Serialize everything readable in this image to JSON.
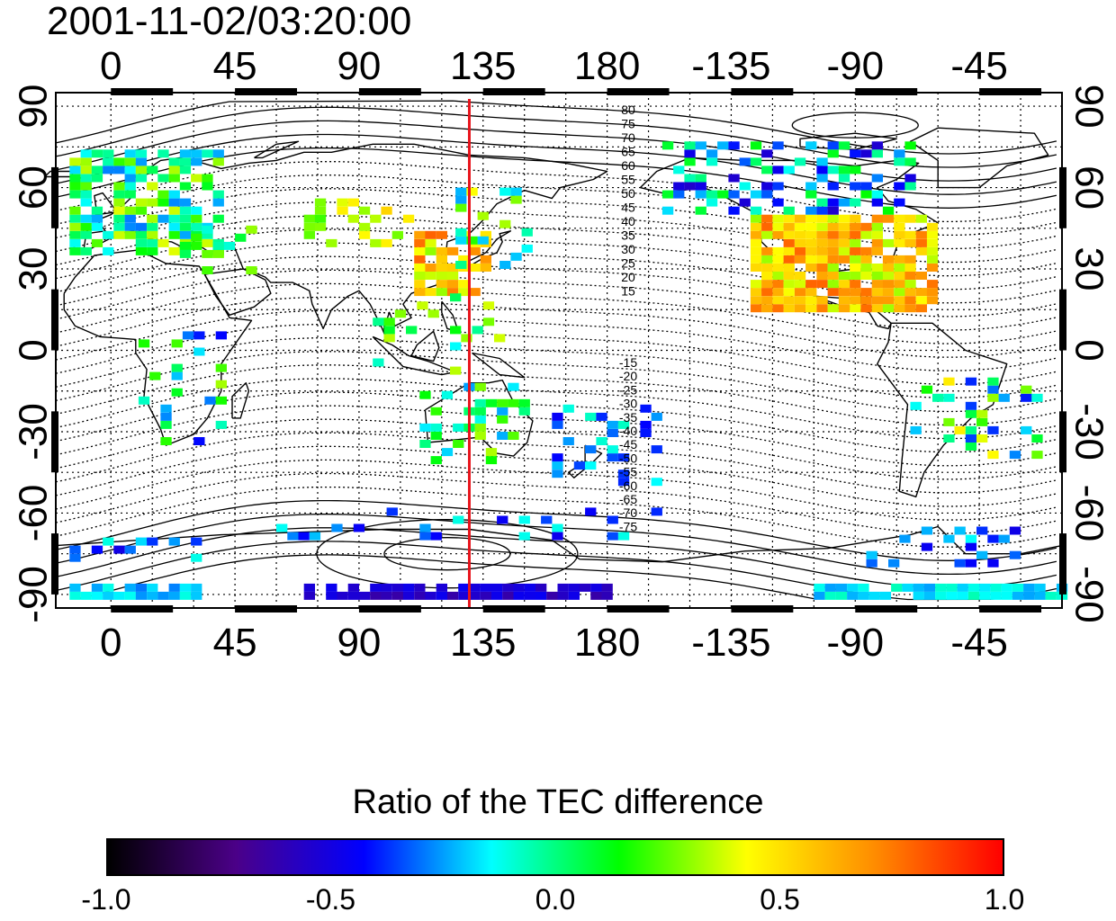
{
  "title": "2001-11-02/03:20:00",
  "map": {
    "lon_ticks_top": [
      "0",
      "45",
      "90",
      "135",
      "180",
      "-135",
      "-90",
      "-45"
    ],
    "lon_ticks_bottom": [
      "0",
      "45",
      "90",
      "135",
      "180",
      "-135",
      "-90",
      "-45"
    ],
    "lat_ticks_left": [
      "90",
      "60",
      "30",
      "0",
      "-30",
      "-60",
      "-90"
    ],
    "lat_ticks_right": [
      "90",
      "60",
      "30",
      "0",
      "-30",
      "-60",
      "-90"
    ],
    "meridian_longitude": 130,
    "meridian_color": "#e8131b",
    "contour_labels_north": [
      "80",
      "75",
      "70",
      "65",
      "60",
      "55",
      "50",
      "45",
      "40",
      "35",
      "30",
      "25",
      "20",
      "15"
    ],
    "contour_labels_south": [
      "-15",
      "-20",
      "-25",
      "-30",
      "-35",
      "-40",
      "-45",
      "-50",
      "-55",
      "-60",
      "-65",
      "-70",
      "-75"
    ],
    "axis": {
      "lon_range": [
        -20,
        345
      ],
      "lat_range": [
        -95,
        95
      ]
    }
  },
  "colorbar": {
    "title": "Ratio of the TEC difference",
    "range": [
      -1.0,
      1.0
    ],
    "tick_labels": [
      "-1.0",
      "-0.5",
      "0.0",
      "0.5",
      "1.0"
    ],
    "colors": [
      "#000000",
      "#4b0088",
      "#0000ff",
      "#00ffff",
      "#00ff00",
      "#ffff00",
      "#ff8c00",
      "#ff0000"
    ]
  }
}
